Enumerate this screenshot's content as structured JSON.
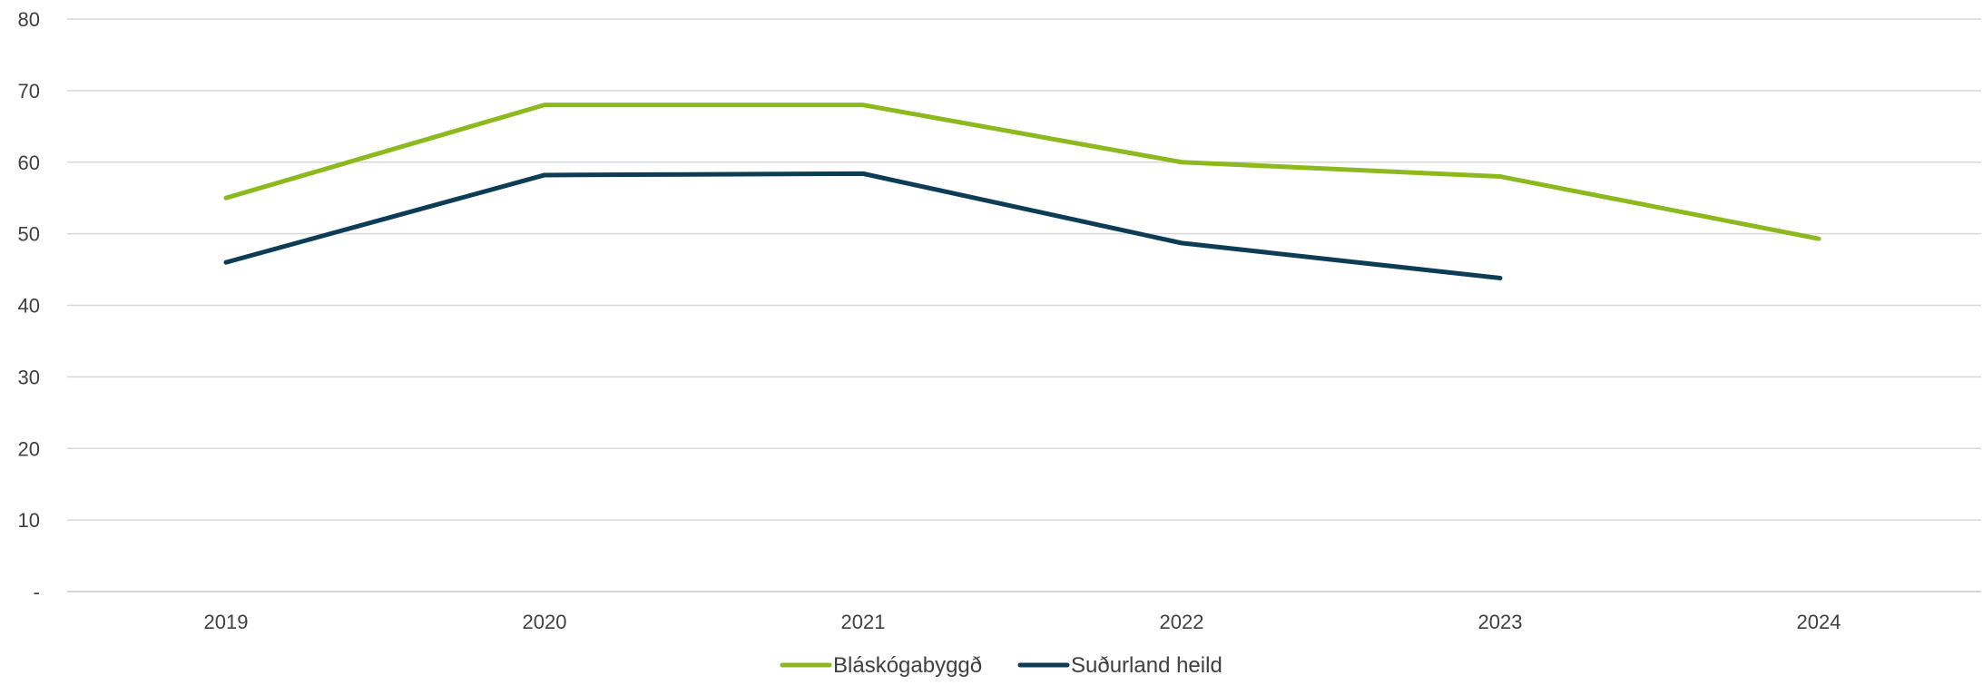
{
  "chart_data": {
    "type": "line",
    "categories": [
      "2019",
      "2020",
      "2021",
      "2022",
      "2023",
      "2024"
    ],
    "y_tick_labels": [
      "-",
      "10",
      "20",
      "30",
      "40",
      "50",
      "60",
      "70",
      "80"
    ],
    "ylim": [
      0,
      80
    ],
    "grid": "horizontal",
    "legend_position": "bottom",
    "series": [
      {
        "name": "Bláskógabyggð",
        "color": "#8cb91e",
        "values": [
          55,
          68,
          68,
          60,
          58,
          49.3
        ]
      },
      {
        "name": "Suðurland heild",
        "color": "#0d3d56",
        "values": [
          46,
          58.2,
          58.4,
          48.7,
          43.8,
          null
        ]
      }
    ]
  }
}
